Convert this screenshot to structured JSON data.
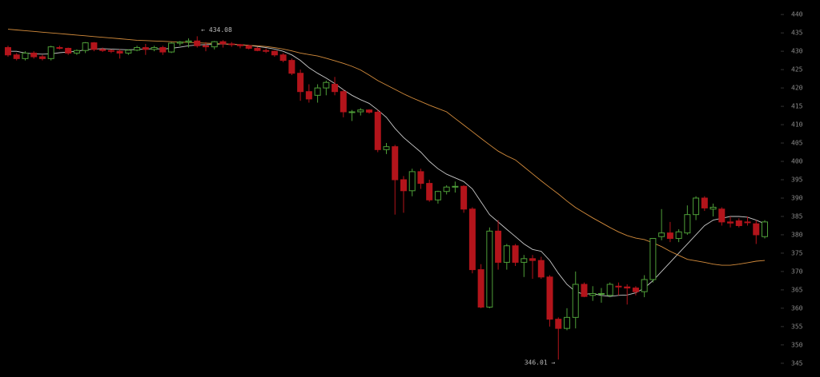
{
  "chart_data": {
    "type": "candlestick",
    "up_color": "#4e9e38",
    "down_color": "#b3141b",
    "ylim": [
      343,
      442
    ],
    "yticks": [
      345,
      350,
      355,
      360,
      365,
      370,
      375,
      380,
      385,
      390,
      395,
      400,
      405,
      410,
      415,
      420,
      425,
      430,
      435,
      440
    ],
    "open": [
      431,
      429,
      428,
      429.5,
      428.5,
      428,
      431,
      430.8,
      429.5,
      430.2,
      432.3,
      430.5,
      430.2,
      430,
      429.5,
      430.3,
      431,
      430.5,
      431,
      429.8,
      432.2,
      432.5,
      432.8,
      431.5,
      431.2,
      432.6,
      432,
      431.8,
      431.5,
      430.8,
      430.2,
      430,
      429,
      427.5,
      424,
      419,
      418,
      420,
      421,
      419,
      413.5,
      413.5,
      414,
      413.4,
      403.2,
      404,
      395,
      392,
      397.2,
      394,
      389.5,
      391.8,
      393,
      393.2,
      387,
      370.5,
      360.3,
      381,
      372.5,
      377,
      372.5,
      373.5,
      373,
      368.5,
      357,
      354.5,
      357.5,
      366.5,
      363.5,
      364,
      363.5,
      366,
      365.8,
      365.5,
      364.5,
      367.8,
      379.5,
      380.5,
      379,
      380.5,
      385.5,
      390,
      387,
      387,
      383.5,
      383.8,
      383.5,
      383,
      379.5
    ],
    "high": [
      431.5,
      429.5,
      430,
      430,
      429,
      431.5,
      431.5,
      431,
      430.5,
      432.5,
      432.5,
      431,
      430.5,
      430.5,
      430.5,
      431.5,
      432,
      431.5,
      431.5,
      432.5,
      432.8,
      433.5,
      434.08,
      432.5,
      432.8,
      433,
      432.5,
      432,
      431.8,
      431.2,
      430.8,
      430.2,
      429.5,
      428,
      425,
      421,
      421,
      422,
      423,
      419.5,
      414,
      414.5,
      414.2,
      414,
      405,
      404.5,
      396,
      398,
      398,
      395,
      392,
      393.5,
      394.5,
      393.5,
      387.5,
      372,
      382,
      384,
      377.5,
      377.5,
      374.5,
      374.5,
      374,
      369,
      357.5,
      360,
      370,
      367,
      366,
      365.5,
      367,
      367,
      366.5,
      366,
      369,
      378.5,
      387,
      383.5,
      381.5,
      388,
      390.5,
      390.5,
      388.5,
      387.5,
      385,
      384.5,
      385,
      384,
      384
    ],
    "low": [
      428.5,
      427.5,
      427.5,
      428,
      427.5,
      427.5,
      430.5,
      429,
      429,
      429.5,
      430,
      429.8,
      429.5,
      428,
      429,
      430,
      429,
      430,
      429,
      429.5,
      431.5,
      431,
      431,
      430,
      430.5,
      431,
      431.2,
      430.8,
      430.5,
      430,
      429.5,
      428.5,
      427,
      423.5,
      416.5,
      416,
      416,
      418,
      418,
      412,
      411,
      412.5,
      413,
      402.5,
      402,
      385.5,
      386,
      390.5,
      392.5,
      389,
      388.5,
      391,
      391.5,
      386,
      369.5,
      360,
      360,
      370.5,
      370.5,
      371.5,
      368.5,
      368,
      368,
      355,
      346.01,
      354,
      354.5,
      363,
      362,
      361.5,
      363,
      363.5,
      361,
      363.5,
      363,
      367,
      378.5,
      378,
      378,
      380,
      384,
      386.5,
      385,
      382.5,
      382,
      382,
      382.5,
      377.5,
      379
    ],
    "close": [
      429,
      428,
      429.5,
      428.5,
      428,
      431.2,
      430.8,
      429.5,
      430.2,
      432.3,
      430.5,
      430.2,
      430,
      429.5,
      430.3,
      431,
      430.5,
      431,
      429.8,
      432.2,
      432.5,
      432.8,
      431.5,
      431.2,
      432.6,
      432,
      431.8,
      431.5,
      430.8,
      430.2,
      430,
      429,
      427.5,
      424,
      419,
      417,
      420,
      421.5,
      419,
      413.5,
      413.5,
      414,
      413.4,
      403.2,
      404,
      395,
      392,
      397.2,
      394,
      389.5,
      391.8,
      393,
      393.2,
      387,
      370.5,
      360.3,
      381,
      372.5,
      377,
      372.5,
      373.5,
      373,
      368.5,
      357,
      354.5,
      357.5,
      366.5,
      363.2,
      364,
      364,
      366.5,
      365.8,
      365.5,
      364.5,
      367.8,
      379,
      380.5,
      379,
      380.8,
      385.5,
      390,
      387.3,
      387.5,
      383.5,
      383.2,
      382.5,
      383.3,
      380,
      383.5
    ],
    "lines": [
      {
        "color": "#c9c9c9",
        "values": [
          430,
          430,
          429.5,
          429.3,
          429.2,
          429.3,
          429.6,
          429.8,
          430,
          430.4,
          430.6,
          430.7,
          430.6,
          430.5,
          430.4,
          430.5,
          430.6,
          430.7,
          430.6,
          430.8,
          431.1,
          431.5,
          431.7,
          431.8,
          431.9,
          432,
          431.9,
          431.8,
          431.6,
          431.3,
          431,
          430.6,
          430,
          429,
          427.5,
          425.5,
          424,
          422.7,
          421.2,
          419.5,
          418,
          416.8,
          415.8,
          414,
          412,
          409,
          406.5,
          404.5,
          402.5,
          400,
          398,
          396.5,
          395.5,
          394.5,
          392.5,
          389,
          385.5,
          383.5,
          381.5,
          379.5,
          377.5,
          376,
          375.5,
          373,
          369.5,
          366.5,
          364.5,
          363.8,
          364,
          363.5,
          363.2,
          363.5,
          363.6,
          364.2,
          365.5,
          367.5,
          370,
          372.5,
          375,
          377.5,
          380,
          382.5,
          384,
          384.5,
          385,
          385,
          384.8,
          384,
          383
        ]
      },
      {
        "color": "#d48c3c",
        "values": [
          436,
          435.8,
          435.6,
          435.4,
          435.2,
          435,
          434.8,
          434.6,
          434.4,
          434.2,
          434,
          433.8,
          433.6,
          433.4,
          433.2,
          433,
          432.9,
          432.8,
          432.7,
          432.6,
          432.5,
          432.4,
          432.3,
          432.2,
          432.1,
          432,
          431.9,
          431.8,
          431.6,
          431.5,
          431.3,
          431,
          430.6,
          430.1,
          429.5,
          429.1,
          428.7,
          428.1,
          427.4,
          426.7,
          425.9,
          424.9,
          423.5,
          422,
          420.8,
          419.6,
          418.4,
          417.3,
          416.3,
          415.3,
          414.4,
          413.5,
          411.7,
          409.9,
          408.1,
          406.3,
          404.5,
          402.8,
          401.5,
          400.4,
          398.5,
          396.6,
          394.7,
          392.9,
          391.1,
          389.2,
          387.4,
          386,
          384.6,
          383.3,
          382,
          380.8,
          379.8,
          379.1,
          378.7,
          377.8,
          376.8,
          375.5,
          374.4,
          373.3,
          372.9,
          372.5,
          372,
          371.7,
          371.7,
          372,
          372.4,
          372.8,
          373
        ]
      }
    ],
    "annotations": [
      {
        "text": "← 434.08",
        "index": 22
      },
      {
        "text": "346.01 →",
        "index": 64
      }
    ]
  }
}
